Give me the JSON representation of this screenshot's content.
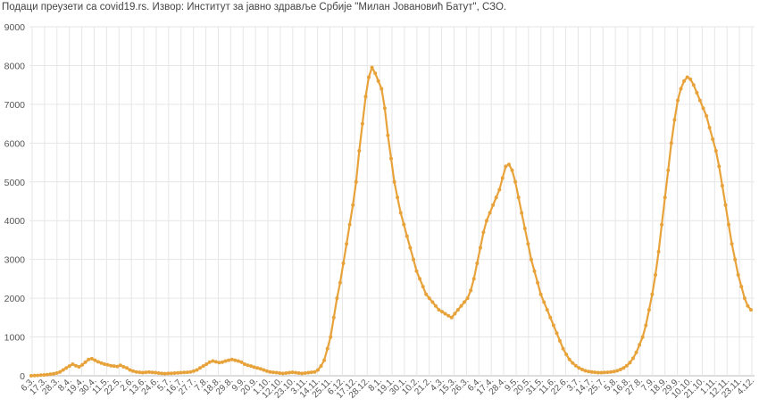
{
  "source_note": "Подаци преузети са covid19.rs. Извор: Институт за јавно здравље Србије \"Милан Јовановић Батут\", СЗО.",
  "chart_data": {
    "type": "line",
    "title": "",
    "xlabel": "",
    "ylabel": "",
    "color": "#e8a23a",
    "ylim": [
      0,
      9000
    ],
    "y_ticks": [
      0,
      1000,
      2000,
      3000,
      4000,
      5000,
      6000,
      7000,
      8000,
      9000
    ],
    "x_tick_labels": [
      "6.3.",
      "17.3.",
      "28.3.",
      "8.4.",
      "19.4.",
      "30.4.",
      "11.5.",
      "22.5.",
      "2.6.",
      "13.6.",
      "24.6.",
      "5.7.",
      "16.7.",
      "27.7.",
      "7.8.",
      "18.8.",
      "29.8.",
      "9.9.",
      "20.9.",
      "1.10.",
      "12.10.",
      "23.10.",
      "3.11.",
      "14.11.",
      "25.11.",
      "6.12.",
      "17.12.",
      "28.12.",
      "8.1.",
      "19.1.",
      "30.1.",
      "10.2.",
      "21.2.",
      "4.3.",
      "15.3.",
      "26.3.",
      "6.4.",
      "17.4.",
      "28.4.",
      "9.5.",
      "20.5.",
      "31.5.",
      "11.6.",
      "22.6.",
      "3.7.",
      "14.7.",
      "25.7.",
      "5.8.",
      "16.8.",
      "27.8.",
      "7.9.",
      "18.9.",
      "29.9.",
      "10.10.",
      "21.10.",
      "1.11.",
      "12.11.",
      "23.11.",
      "4.12."
    ],
    "grid": true,
    "series": [
      {
        "values": [
          0,
          5,
          10,
          15,
          20,
          30,
          40,
          50,
          70,
          100,
          150,
          200,
          250,
          300,
          260,
          230,
          280,
          350,
          420,
          440,
          400,
          360,
          330,
          300,
          280,
          260,
          250,
          240,
          270,
          230,
          200,
          150,
          120,
          100,
          90,
          80,
          90,
          95,
          85,
          80,
          70,
          60,
          55,
          60,
          65,
          70,
          75,
          80,
          85,
          90,
          100,
          120,
          150,
          200,
          250,
          300,
          350,
          380,
          360,
          340,
          350,
          380,
          400,
          420,
          400,
          380,
          350,
          300,
          270,
          250,
          220,
          200,
          180,
          150,
          120,
          100,
          90,
          80,
          70,
          60,
          70,
          80,
          90,
          80,
          70,
          60,
          70,
          80,
          90,
          100,
          150,
          250,
          400,
          700,
          1000,
          1500,
          2000,
          2400,
          2900,
          3400,
          3900,
          4400,
          5000,
          5800,
          6500,
          7200,
          7700,
          7950,
          7800,
          7600,
          7400,
          6900,
          6200,
          5600,
          5000,
          4600,
          4200,
          3900,
          3600,
          3300,
          3000,
          2700,
          2500,
          2300,
          2100,
          2000,
          1900,
          1800,
          1700,
          1650,
          1600,
          1550,
          1500,
          1600,
          1700,
          1800,
          1900,
          2000,
          2200,
          2500,
          2900,
          3300,
          3700,
          4000,
          4200,
          4400,
          4600,
          4800,
          5100,
          5400,
          5450,
          5300,
          5000,
          4600,
          4200,
          3800,
          3400,
          3000,
          2700,
          2400,
          2100,
          1900,
          1700,
          1500,
          1300,
          1100,
          900,
          700,
          550,
          420,
          330,
          260,
          200,
          160,
          130,
          110,
          100,
          90,
          80,
          80,
          85,
          90,
          100,
          110,
          130,
          160,
          200,
          260,
          340,
          450,
          600,
          800,
          1000,
          1300,
          1700,
          2100,
          2600,
          3200,
          3900,
          4600,
          5300,
          6000,
          6600,
          7100,
          7400,
          7600,
          7700,
          7650,
          7500,
          7300,
          7100,
          6900,
          6700,
          6400,
          6100,
          5800,
          5400,
          4900,
          4400,
          3900,
          3400,
          3000,
          2600,
          2300,
          2000,
          1800,
          1700
        ]
      }
    ]
  }
}
